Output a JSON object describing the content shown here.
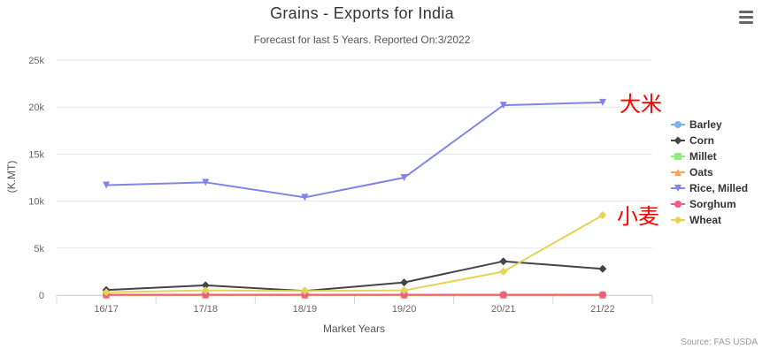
{
  "chart_data": {
    "type": "line",
    "title": "Grains - Exports for India",
    "subtitle": "Forecast for last 5 Years. Reported On:3/2022",
    "xlabel": "Market Years",
    "ylabel": "(K.MT)",
    "categories": [
      "16/17",
      "17/18",
      "18/19",
      "19/20",
      "20/21",
      "21/22"
    ],
    "ylim": [
      0,
      25000
    ],
    "yticks": [
      0,
      5000,
      10000,
      15000,
      20000,
      25000
    ],
    "ytick_labels": [
      "0",
      "5k",
      "10k",
      "15k",
      "20k",
      "25k"
    ],
    "series": [
      {
        "name": "Barley",
        "color": "#7cb5ec",
        "marker": "circle",
        "values": [
          0,
          0,
          0,
          0,
          0,
          0
        ]
      },
      {
        "name": "Corn",
        "color": "#434348",
        "marker": "diamond",
        "values": [
          550,
          1050,
          450,
          1350,
          3600,
          2800
        ]
      },
      {
        "name": "Millet",
        "color": "#90ed7d",
        "marker": "square",
        "values": [
          0,
          0,
          0,
          0,
          0,
          0
        ]
      },
      {
        "name": "Oats",
        "color": "#f7a35c",
        "marker": "triangle",
        "values": [
          0,
          0,
          0,
          0,
          0,
          0
        ]
      },
      {
        "name": "Rice, Milled",
        "color": "#8085e9",
        "marker": "triangle-down",
        "values": [
          11700,
          12000,
          10400,
          12500,
          20200,
          20500
        ]
      },
      {
        "name": "Sorghum",
        "color": "#f15c80",
        "marker": "circle",
        "values": [
          50,
          50,
          50,
          50,
          50,
          50
        ]
      },
      {
        "name": "Wheat",
        "color": "#e4d354",
        "marker": "diamond",
        "values": [
          300,
          500,
          450,
          500,
          2500,
          8500
        ]
      }
    ],
    "annotations": [
      {
        "text": "大米",
        "series": "Rice, Milled"
      },
      {
        "text": "小麦",
        "series": "Wheat"
      }
    ],
    "source": "Source: FAS USDA"
  },
  "menu": {
    "icon": "hamburger-menu-icon"
  }
}
